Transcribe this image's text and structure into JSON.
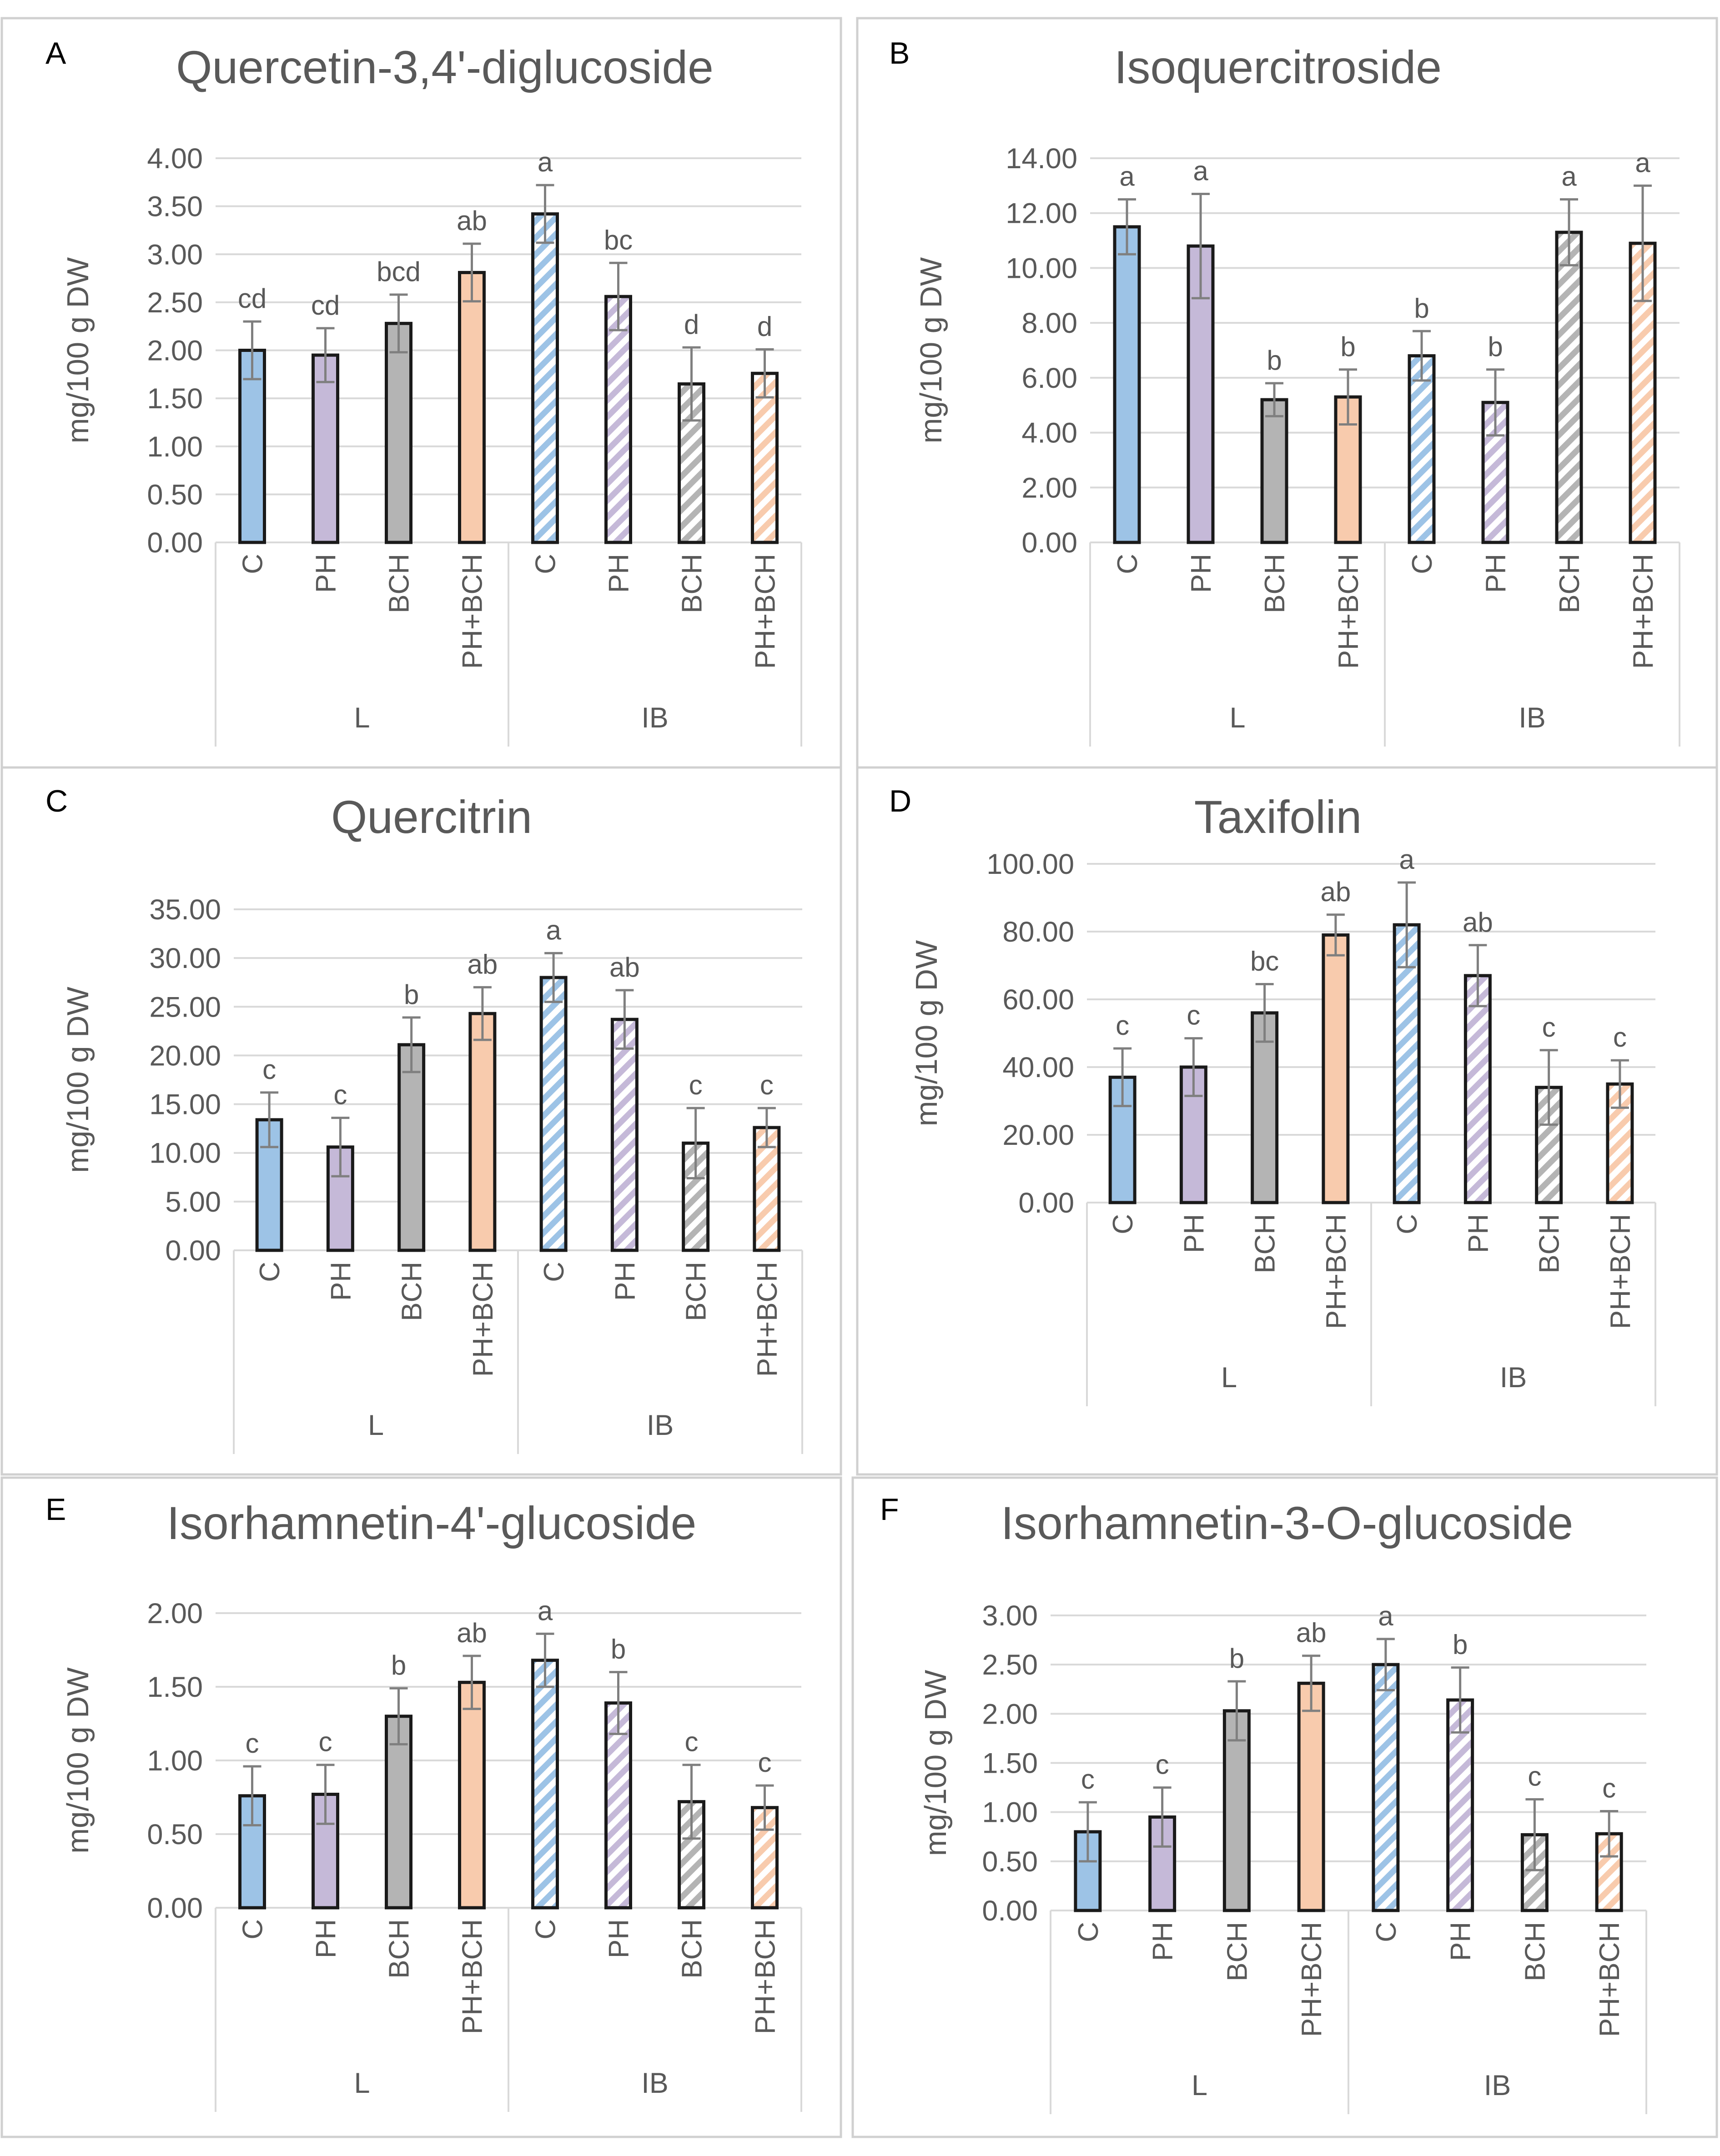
{
  "figure": {
    "group_labels": [
      "L",
      "IB"
    ],
    "category_labels": [
      "C",
      "PH",
      "BCH",
      "PH+BCH"
    ],
    "ylabel": "mg/100 g DW",
    "colors": {
      "C": "#9dc3e6",
      "PH": "#c5b9d8",
      "BCH": "#b4b4b4",
      "PH+BCH": "#f8cbad",
      "border": "#d0d0d0",
      "text": "#595959",
      "grid": "#d9d9d9",
      "bar_outline": "#1a1a1a",
      "error_bar": "#7f7f7f"
    },
    "group_fill": [
      "solid",
      "hatched"
    ]
  },
  "chart_data": [
    {
      "panel": "A",
      "type": "bar",
      "title": "Quercetin-3,4'-diglucoside",
      "ylabel": "mg/100 g DW",
      "ylim": [
        0,
        4
      ],
      "yticks": [
        "0.00",
        "0.50",
        "1.00",
        "1.50",
        "2.00",
        "2.50",
        "3.00",
        "3.50",
        "4.00"
      ],
      "groups": [
        "L",
        "IB"
      ],
      "categories": [
        "C",
        "PH",
        "BCH",
        "PH+BCH",
        "C",
        "PH",
        "BCH",
        "PH+BCH"
      ],
      "values": [
        2.0,
        1.95,
        2.28,
        2.81,
        3.42,
        2.56,
        1.65,
        1.76
      ],
      "errors": [
        0.3,
        0.28,
        0.3,
        0.3,
        0.3,
        0.35,
        0.38,
        0.25
      ],
      "letters": [
        "cd",
        "cd",
        "bcd",
        "ab",
        "a",
        "bc",
        "d",
        "d"
      ]
    },
    {
      "panel": "B",
      "type": "bar",
      "title": "Isoquercitroside",
      "ylabel": "mg/100 g DW",
      "ylim": [
        0,
        14
      ],
      "yticks": [
        "0.00",
        "2.00",
        "4.00",
        "6.00",
        "8.00",
        "10.00",
        "12.00",
        "14.00"
      ],
      "groups": [
        "L",
        "IB"
      ],
      "categories": [
        "C",
        "PH",
        "BCH",
        "PH+BCH",
        "C",
        "PH",
        "BCH",
        "PH+BCH"
      ],
      "values": [
        11.5,
        10.8,
        5.2,
        5.3,
        6.8,
        5.1,
        11.3,
        10.9
      ],
      "errors": [
        1.0,
        1.9,
        0.6,
        1.0,
        0.9,
        1.2,
        1.2,
        2.1
      ],
      "letters": [
        "a",
        "a",
        "b",
        "b",
        "b",
        "b",
        "a",
        "a"
      ]
    },
    {
      "panel": "C",
      "type": "bar",
      "title": "Quercitrin",
      "ylabel": "mg/100 g DW",
      "ylim": [
        0,
        35
      ],
      "yticks": [
        "0.00",
        "5.00",
        "10.00",
        "15.00",
        "20.00",
        "25.00",
        "30.00",
        "35.00"
      ],
      "groups": [
        "L",
        "IB"
      ],
      "categories": [
        "C",
        "PH",
        "BCH",
        "PH+BCH",
        "C",
        "PH",
        "BCH",
        "PH+BCH"
      ],
      "values": [
        13.4,
        10.6,
        21.1,
        24.3,
        28.0,
        23.7,
        11.0,
        12.6
      ],
      "errors": [
        2.8,
        3.0,
        2.8,
        2.7,
        2.5,
        3.0,
        3.6,
        2.0
      ],
      "letters": [
        "c",
        "c",
        "b",
        "ab",
        "a",
        "ab",
        "c",
        "c"
      ]
    },
    {
      "panel": "D",
      "type": "bar",
      "title": "Taxifolin",
      "ylabel": "mg/100 g DW",
      "ylim": [
        0,
        100
      ],
      "yticks": [
        "0.00",
        "20.00",
        "40.00",
        "60.00",
        "80.00",
        "100.00"
      ],
      "groups": [
        "L",
        "IB"
      ],
      "categories": [
        "C",
        "PH",
        "BCH",
        "PH+BCH",
        "C",
        "PH",
        "BCH",
        "PH+BCH"
      ],
      "values": [
        37.0,
        40.0,
        56.0,
        79.0,
        82.0,
        67.0,
        34.0,
        35.0
      ],
      "errors": [
        8.5,
        8.5,
        8.5,
        6.0,
        12.5,
        9.0,
        11.0,
        7.0
      ],
      "letters": [
        "c",
        "c",
        "bc",
        "ab",
        "a",
        "ab",
        "c",
        "c"
      ]
    },
    {
      "panel": "E",
      "type": "bar",
      "title": "Isorhamnetin-4'-glucoside",
      "ylabel": "mg/100 g DW",
      "ylim": [
        0,
        2
      ],
      "yticks": [
        "0.00",
        "0.50",
        "1.00",
        "1.50",
        "2.00"
      ],
      "groups": [
        "L",
        "IB"
      ],
      "categories": [
        "C",
        "PH",
        "BCH",
        "PH+BCH",
        "C",
        "PH",
        "BCH",
        "PH+BCH"
      ],
      "values": [
        0.76,
        0.77,
        1.3,
        1.53,
        1.68,
        1.39,
        0.72,
        0.68
      ],
      "errors": [
        0.2,
        0.2,
        0.19,
        0.18,
        0.18,
        0.21,
        0.25,
        0.15
      ],
      "letters": [
        "c",
        "c",
        "b",
        "ab",
        "a",
        "b",
        "c",
        "c"
      ]
    },
    {
      "panel": "F",
      "type": "bar",
      "title": "Isorhamnetin-3-O-glucoside",
      "ylabel": "mg/100 g DW",
      "ylim": [
        0,
        3
      ],
      "yticks": [
        "0.00",
        "0.50",
        "1.00",
        "1.50",
        "2.00",
        "2.50",
        "3.00"
      ],
      "groups": [
        "L",
        "IB"
      ],
      "categories": [
        "C",
        "PH",
        "BCH",
        "PH+BCH",
        "C",
        "PH",
        "BCH",
        "PH+BCH"
      ],
      "values": [
        0.8,
        0.95,
        2.03,
        2.31,
        2.5,
        2.14,
        0.77,
        0.78
      ],
      "errors": [
        0.3,
        0.3,
        0.3,
        0.28,
        0.26,
        0.33,
        0.36,
        0.23
      ],
      "letters": [
        "c",
        "c",
        "b",
        "ab",
        "a",
        "b",
        "c",
        "c"
      ]
    }
  ]
}
